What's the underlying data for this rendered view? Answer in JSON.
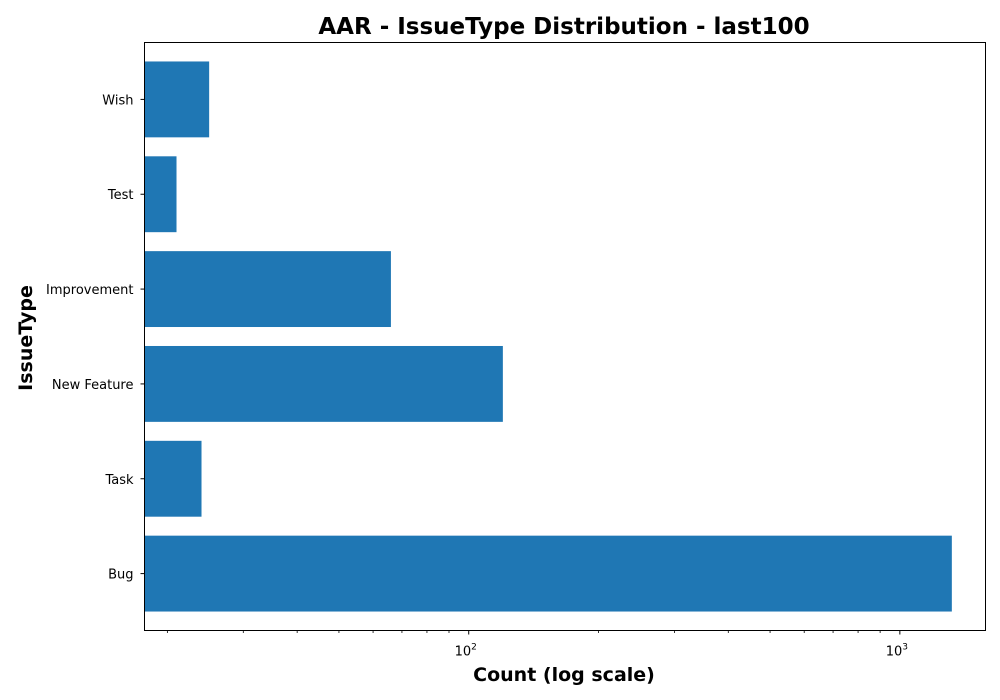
{
  "chart_data": {
    "type": "bar",
    "orientation": "horizontal",
    "title": "AAR - IssueType Distribution - last100",
    "xlabel": "Count (log scale)",
    "ylabel": "IssueType",
    "xscale": "log",
    "xlim": [
      17.7,
      1580
    ],
    "x_ticks": [
      {
        "value": 100,
        "base": "10",
        "exp": "2"
      },
      {
        "value": 1000,
        "base": "10",
        "exp": "3"
      }
    ],
    "categories": [
      "Bug",
      "Task",
      "New Feature",
      "Improvement",
      "Test",
      "Wish"
    ],
    "values": [
      1320,
      24,
      120,
      66,
      21,
      25
    ],
    "bar_color": "#1f77b4",
    "grid": false,
    "legend": "none"
  }
}
